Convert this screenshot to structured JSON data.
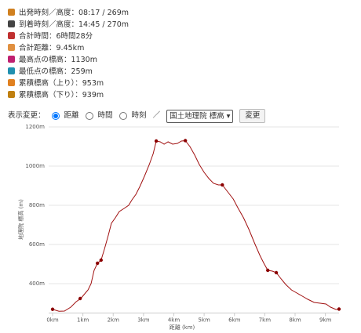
{
  "stats": [
    {
      "label": "出発時刻／高度：",
      "value": "08:17 / 269m"
    },
    {
      "label": "到着時刻／高度：",
      "value": "14:45 / 270m"
    },
    {
      "label": "合計時間：",
      "value": "6時間28分"
    },
    {
      "label": "合計距離：",
      "value": "9.45km"
    },
    {
      "label": "最高点の標高：",
      "value": "1130m"
    },
    {
      "label": "最低点の標高：",
      "value": "259m"
    },
    {
      "label": "累積標高（上り）：",
      "value": "953m"
    },
    {
      "label": "累積標高（下り）：",
      "value": "939m"
    }
  ],
  "controls": {
    "label": "表示変更：",
    "options": [
      "距離",
      "時間",
      "時刻"
    ],
    "separator": "／",
    "select": "国土地理院 標高",
    "button": "変更"
  },
  "chart_data": {
    "type": "line",
    "x_label": "距離 (km)",
    "y_label": "地理院 標高 (m)",
    "color": "#a01010",
    "marker_color": "#8b0000",
    "x": [
      0,
      0.21,
      0.39,
      0.6,
      0.78,
      0.93,
      1.06,
      1.17,
      1.27,
      1.37,
      1.48,
      1.6,
      1.71,
      1.84,
      1.94,
      2.07,
      2.2,
      2.36,
      2.51,
      2.62,
      2.75,
      2.88,
      3.03,
      3.19,
      3.32,
      3.42,
      3.55,
      3.68,
      3.81,
      3.96,
      4.12,
      4.25,
      4.38,
      4.53,
      4.69,
      4.84,
      5.0,
      5.16,
      5.31,
      5.47,
      5.6,
      5.78,
      5.96,
      6.11,
      6.3,
      6.48,
      6.66,
      6.84,
      6.97,
      7.1,
      7.25,
      7.38,
      7.54,
      7.69,
      7.88,
      8.06,
      8.24,
      8.42,
      8.63,
      8.83,
      9.02,
      9.17,
      9.35,
      9.45
    ],
    "values": [
      269,
      259,
      260,
      280,
      308,
      324,
      348,
      368,
      400,
      468,
      504,
      520,
      576,
      648,
      708,
      736,
      768,
      784,
      800,
      828,
      856,
      896,
      948,
      1008,
      1064,
      1128,
      1124,
      1112,
      1124,
      1112,
      1116,
      1128,
      1130,
      1100,
      1056,
      1008,
      968,
      936,
      912,
      904,
      904,
      868,
      832,
      788,
      736,
      676,
      608,
      544,
      504,
      468,
      464,
      456,
      424,
      396,
      368,
      352,
      336,
      320,
      304,
      300,
      296,
      280,
      268,
      270
    ],
    "markers": {
      "x": [
        0,
        0.91,
        1.48,
        1.6,
        3.42,
        4.38,
        5.6,
        7.1,
        7.38,
        9.45
      ],
      "values": [
        269,
        324,
        504,
        520,
        1128,
        1130,
        904,
        468,
        456,
        270
      ]
    },
    "xlim": [
      0,
      9.45
    ],
    "ylim": [
      250,
      1200
    ],
    "xticks": [
      {
        "value": 0,
        "label": "0km"
      },
      {
        "value": 1,
        "label": "1km"
      },
      {
        "value": 2,
        "label": "2km"
      },
      {
        "value": 3,
        "label": "3km"
      },
      {
        "value": 4,
        "label": "4km"
      },
      {
        "value": 5,
        "label": "5km"
      },
      {
        "value": 6,
        "label": "6km"
      },
      {
        "value": 7,
        "label": "7km"
      },
      {
        "value": 8,
        "label": "8km"
      },
      {
        "value": 9,
        "label": "9km"
      }
    ],
    "yticks": [
      {
        "value": 400,
        "label": "400m"
      },
      {
        "value": 600,
        "label": "600m"
      },
      {
        "value": 800,
        "label": "800m"
      },
      {
        "value": 1000,
        "label": "1000m"
      },
      {
        "value": 1200,
        "label": "1200m"
      }
    ],
    "grid": true
  }
}
